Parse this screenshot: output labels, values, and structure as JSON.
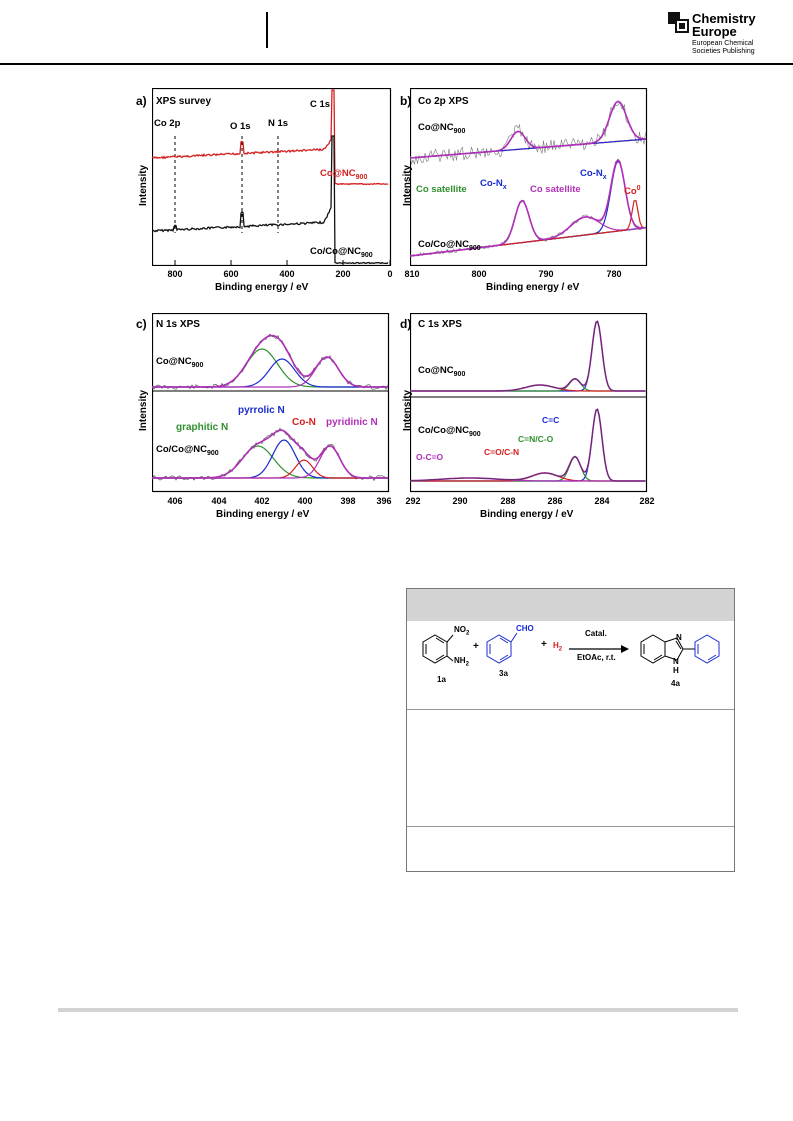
{
  "header": {
    "logo_line1": "Chemistry",
    "logo_line2": "Europe",
    "logo_sub1": "European Chemical",
    "logo_sub2": "Societies Publishing"
  },
  "figure": {
    "panels": [
      {
        "label": "a)",
        "title": "XPS survey",
        "xlabel": "Binding energy / eV",
        "ylabel": "Intensity",
        "ticks": [
          "800",
          "600",
          "400",
          "200",
          "0"
        ],
        "annotations": [
          "Co 2p",
          "O 1s",
          "N 1s",
          "C 1s"
        ],
        "series_labels": [
          "Co@NC",
          "900",
          "Co/Co@NC",
          "900"
        ]
      },
      {
        "label": "b)",
        "title": "Co 2p XPS",
        "xlabel": "Binding energy / eV",
        "ylabel": "Intensity",
        "ticks": [
          "810",
          "800",
          "790",
          "780"
        ],
        "annotations": [
          "Co satellite",
          "Co-N",
          "x",
          "Co satellite",
          "Co-N",
          "x",
          "Co",
          "0"
        ],
        "series_labels": [
          "Co@NC",
          "900",
          "Co/Co@NC",
          "900"
        ]
      },
      {
        "label": "c)",
        "title": "N 1s XPS",
        "xlabel": "Binding energy / eV",
        "ylabel": "Intensity",
        "ticks": [
          "406",
          "404",
          "402",
          "400",
          "398",
          "396"
        ],
        "annotations": [
          "pyrrolic N",
          "Co-N",
          "pyridinic N",
          "graphitic N"
        ],
        "series_labels": [
          "Co@NC",
          "900",
          "Co/Co@NC",
          "900"
        ]
      },
      {
        "label": "d)",
        "title": "C 1s XPS",
        "xlabel": "Binding energy / eV",
        "ylabel": "Intensity",
        "ticks": [
          "292",
          "290",
          "288",
          "286",
          "284",
          "282"
        ],
        "annotations": [
          "C=C",
          "C=N/C-O",
          "C=O/C-N",
          "O-C=O"
        ],
        "series_labels": [
          "Co@NC",
          "900",
          "Co/Co@NC",
          "900"
        ]
      }
    ]
  },
  "chart_data": [
    {
      "type": "line",
      "title": "XPS survey",
      "xlabel": "Binding energy / eV",
      "ylabel": "Intensity",
      "xlim": [
        850,
        0
      ],
      "series": [
        {
          "name": "Co@NC900",
          "color": "#d22020"
        },
        {
          "name": "Co/Co@NC900",
          "color": "#111111"
        }
      ]
    },
    {
      "type": "line",
      "title": "Co 2p XPS",
      "xlabel": "Binding energy / eV",
      "ylabel": "Intensity",
      "xlim": [
        810,
        775
      ],
      "series": [
        {
          "name": "Co@NC900"
        },
        {
          "name": "Co/Co@NC900"
        }
      ]
    },
    {
      "type": "line",
      "title": "N 1s XPS",
      "xlabel": "Binding energy / eV",
      "ylabel": "Intensity",
      "xlim": [
        407,
        396
      ],
      "series": [
        {
          "name": "Co@NC900"
        },
        {
          "name": "Co/Co@NC900"
        }
      ]
    },
    {
      "type": "line",
      "title": "C 1s XPS",
      "xlabel": "Binding energy / eV",
      "ylabel": "Intensity",
      "xlim": [
        292,
        282
      ],
      "series": [
        {
          "name": "Co@NC900"
        },
        {
          "name": "Co/Co@NC900"
        }
      ]
    }
  ],
  "scheme": {
    "no2": "NO",
    "no2_sub": "2",
    "nh2": "NH",
    "nh2_sub": "2",
    "cho": "CHO",
    "plus1": "+",
    "plus2": "+",
    "h2": "H",
    "h2_sub": "2",
    "catal": "Catal.",
    "cond": "EtOAc, r.t.",
    "c1": "1a",
    "c3": "3a",
    "c4": "4a",
    "ring_n": "N",
    "ring_nh": "N",
    "ring_h": "H"
  },
  "colors": {
    "red": "#d42020",
    "black": "#111111",
    "blue": "#1a2bd0",
    "green": "#2f8f2f",
    "magenta": "#b030b8",
    "gray": "#888888"
  }
}
